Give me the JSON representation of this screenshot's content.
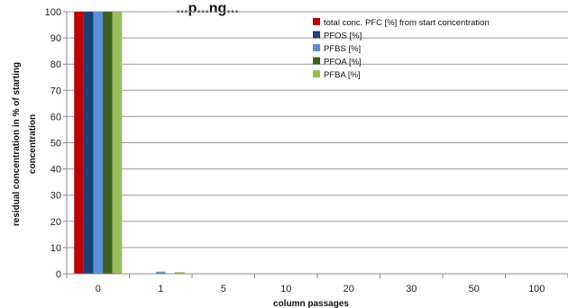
{
  "chart_data": {
    "type": "bar",
    "title": "...p...ng...",
    "xlabel": "column passages",
    "ylabel_lines": [
      "residual concentration in % of starting",
      "concentration"
    ],
    "categories": [
      "0",
      "1",
      "5",
      "10",
      "20",
      "30",
      "50",
      "100"
    ],
    "ylim": [
      0,
      100
    ],
    "yticks": [
      0,
      10,
      20,
      30,
      40,
      50,
      60,
      70,
      80,
      90,
      100
    ],
    "grid": true,
    "legend_position": "top-right",
    "series": [
      {
        "name": "total conc. PFC [%] from start concentration",
        "color": "#c00000",
        "values": [
          100,
          0,
          0,
          0,
          0,
          0,
          0,
          0
        ]
      },
      {
        "name": "PFOS [%]",
        "color": "#1f3f7a",
        "values": [
          100,
          0,
          0,
          0,
          0,
          0,
          0,
          0
        ]
      },
      {
        "name": "PFBS [%]",
        "color": "#5b8fd6",
        "values": [
          100,
          0.8,
          0,
          0,
          0,
          0,
          0,
          0
        ]
      },
      {
        "name": "PFOA [%]",
        "color": "#3d5e1e",
        "values": [
          100,
          0,
          0,
          0,
          0,
          0,
          0,
          0
        ]
      },
      {
        "name": "PFBA [%]",
        "color": "#9bbb59",
        "values": [
          100,
          0.6,
          0,
          0,
          0,
          0,
          0,
          0
        ]
      }
    ]
  }
}
